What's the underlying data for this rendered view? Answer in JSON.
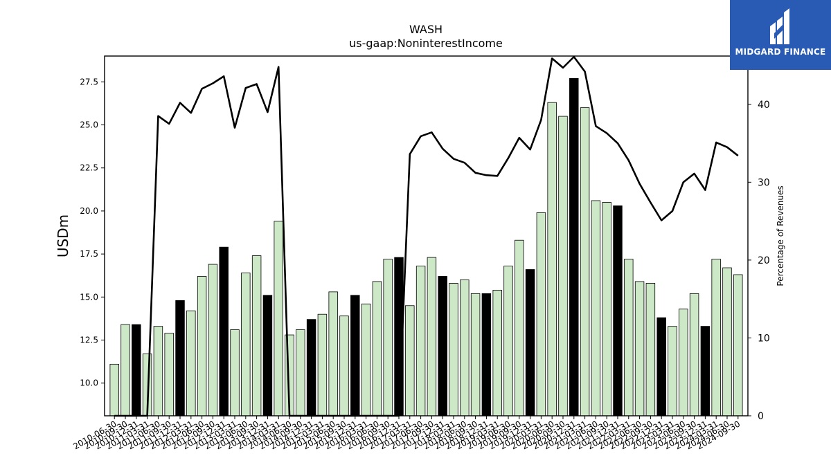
{
  "chart_data": {
    "type": "bar",
    "title": "WASH",
    "subtitle": "us-gaap:NoninterestIncome",
    "ylabel": "USDm",
    "y2label": "Percentage of Revenues",
    "ylim": [
      8.1,
      29.0
    ],
    "y2lim": [
      0,
      46.2
    ],
    "yticks": [
      "10.0",
      "12.5",
      "15.0",
      "17.5",
      "20.0",
      "22.5",
      "25.0",
      "27.5"
    ],
    "y2ticks": [
      "0",
      "10",
      "20",
      "30",
      "40"
    ],
    "categories": [
      "2010-06-30",
      "2010-09-30",
      "2010-12-31",
      "2011-03-31",
      "2011-06-30",
      "2011-09-30",
      "2011-12-31",
      "2012-03-31",
      "2012-06-30",
      "2012-09-30",
      "2012-12-31",
      "2013-03-31",
      "2013-06-30",
      "2013-09-30",
      "2013-12-31",
      "2014-03-31",
      "2014-06-30",
      "2014-09-30",
      "2014-12-31",
      "2015-03-31",
      "2015-06-30",
      "2015-09-30",
      "2015-12-31",
      "2016-03-31",
      "2016-06-30",
      "2016-09-30",
      "2016-12-31",
      "2017-03-31",
      "2017-06-30",
      "2017-09-30",
      "2017-12-31",
      "2018-03-31",
      "2018-06-30",
      "2018-09-30",
      "2018-12-31",
      "2019-03-31",
      "2019-06-30",
      "2019-09-30",
      "2019-12-31",
      "2020-03-31",
      "2020-06-30",
      "2020-09-30",
      "2020-12-31",
      "2021-03-31",
      "2021-06-30",
      "2021-09-30",
      "2021-12-31",
      "2022-03-31",
      "2022-06-30",
      "2022-09-30",
      "2022-12-31",
      "2023-03-31",
      "2023-06-30",
      "2023-09-30",
      "2023-12-31",
      "2024-03-31",
      "2024-06-30",
      "2024-09-30"
    ],
    "xtick_labels": [
      "2010-06-30",
      "2010-09-30",
      "2010-12-31",
      "2011-03-31",
      "2011-06-30",
      "2011-09-30",
      "2011-12-31",
      "2012-03-31",
      "2012-06-30",
      "2012-09-30",
      "2012-12-31",
      "2013-03-31",
      "2013-06-30",
      "2013-09-30",
      "2013-12-31",
      "2014-03-31",
      "2014-06-30",
      "2014-09-30",
      "2014-12-31",
      "2015-03-31",
      "2015-06-30",
      "2015-09-30",
      "2015-12-31",
      "2016-03-31",
      "2016-06-30",
      "2016-09-30",
      "2016-12-31",
      "2017-03-31",
      "2017-06-30",
      "2017-09-30",
      "2017-12-31",
      "2018-03-31",
      "2018-06-30",
      "2018-09-30",
      "2018-12-31",
      "2019-03-31",
      "2019-06-30",
      "2019-09-30",
      "2019-12-31",
      "2020-03-31",
      "2020-06-30",
      "2020-09-30",
      "2020-12-31",
      "2021-03-31",
      "2021-06-30",
      "2021-09-30",
      "2021-12-31",
      "2022-03-31",
      "2022-06-30",
      "2022-09-30",
      "2022-12-31",
      "2023-03-31",
      "2023-06-30",
      "2023-09-30",
      "2023-12-31",
      "2024-03-31",
      "2024-06-30",
      "2024-09-30"
    ],
    "series": [
      {
        "type": "bar",
        "values": [
          11.1,
          13.4,
          13.4,
          11.7,
          13.3,
          12.9,
          14.8,
          14.2,
          16.2,
          16.9,
          17.9,
          13.1,
          16.4,
          17.4,
          15.1,
          19.4,
          12.8,
          13.1,
          13.7,
          14.0,
          15.3,
          13.9,
          15.1,
          14.6,
          15.9,
          17.2,
          17.3,
          14.5,
          16.8,
          17.3,
          16.2,
          15.8,
          16.0,
          15.2,
          15.2,
          15.4,
          16.8,
          18.3,
          16.6,
          19.9,
          26.3,
          25.5,
          27.7,
          26.0,
          20.6,
          20.5,
          20.3,
          17.2,
          15.9,
          15.8,
          13.8,
          13.3,
          14.3,
          15.2,
          13.3,
          17.2,
          16.7,
          16.3
        ],
        "highlight": [
          false,
          false,
          true,
          false,
          false,
          false,
          true,
          false,
          false,
          false,
          true,
          false,
          false,
          false,
          true,
          false,
          false,
          false,
          true,
          false,
          false,
          false,
          true,
          false,
          false,
          false,
          true,
          false,
          false,
          false,
          true,
          false,
          false,
          false,
          true,
          false,
          false,
          false,
          true,
          false,
          false,
          false,
          true,
          false,
          false,
          false,
          true,
          false,
          false,
          false,
          true,
          false,
          false,
          false,
          true,
          false,
          false,
          false
        ]
      },
      {
        "type": "line",
        "axis": "right",
        "values": [
          0,
          0,
          0,
          0,
          38.5,
          37.5,
          40.2,
          38.9,
          42.0,
          42.7,
          43.6,
          37.0,
          42.1,
          42.6,
          39.0,
          44.8,
          0,
          0,
          0,
          0,
          0,
          0,
          0,
          0,
          0,
          0,
          0,
          33.6,
          35.9,
          36.4,
          34.3,
          33.0,
          32.5,
          31.2,
          30.9,
          30.8,
          33.1,
          35.7,
          34.2,
          38.0,
          45.9,
          44.7,
          46.1,
          44.2,
          37.2,
          36.3,
          35.0,
          32.8,
          29.8,
          27.4,
          25.1,
          26.3,
          30.0,
          31.1,
          29.0,
          35.1,
          34.5,
          33.4
        ]
      }
    ]
  },
  "logo": {
    "text": "MIDGARD FINANCE"
  }
}
